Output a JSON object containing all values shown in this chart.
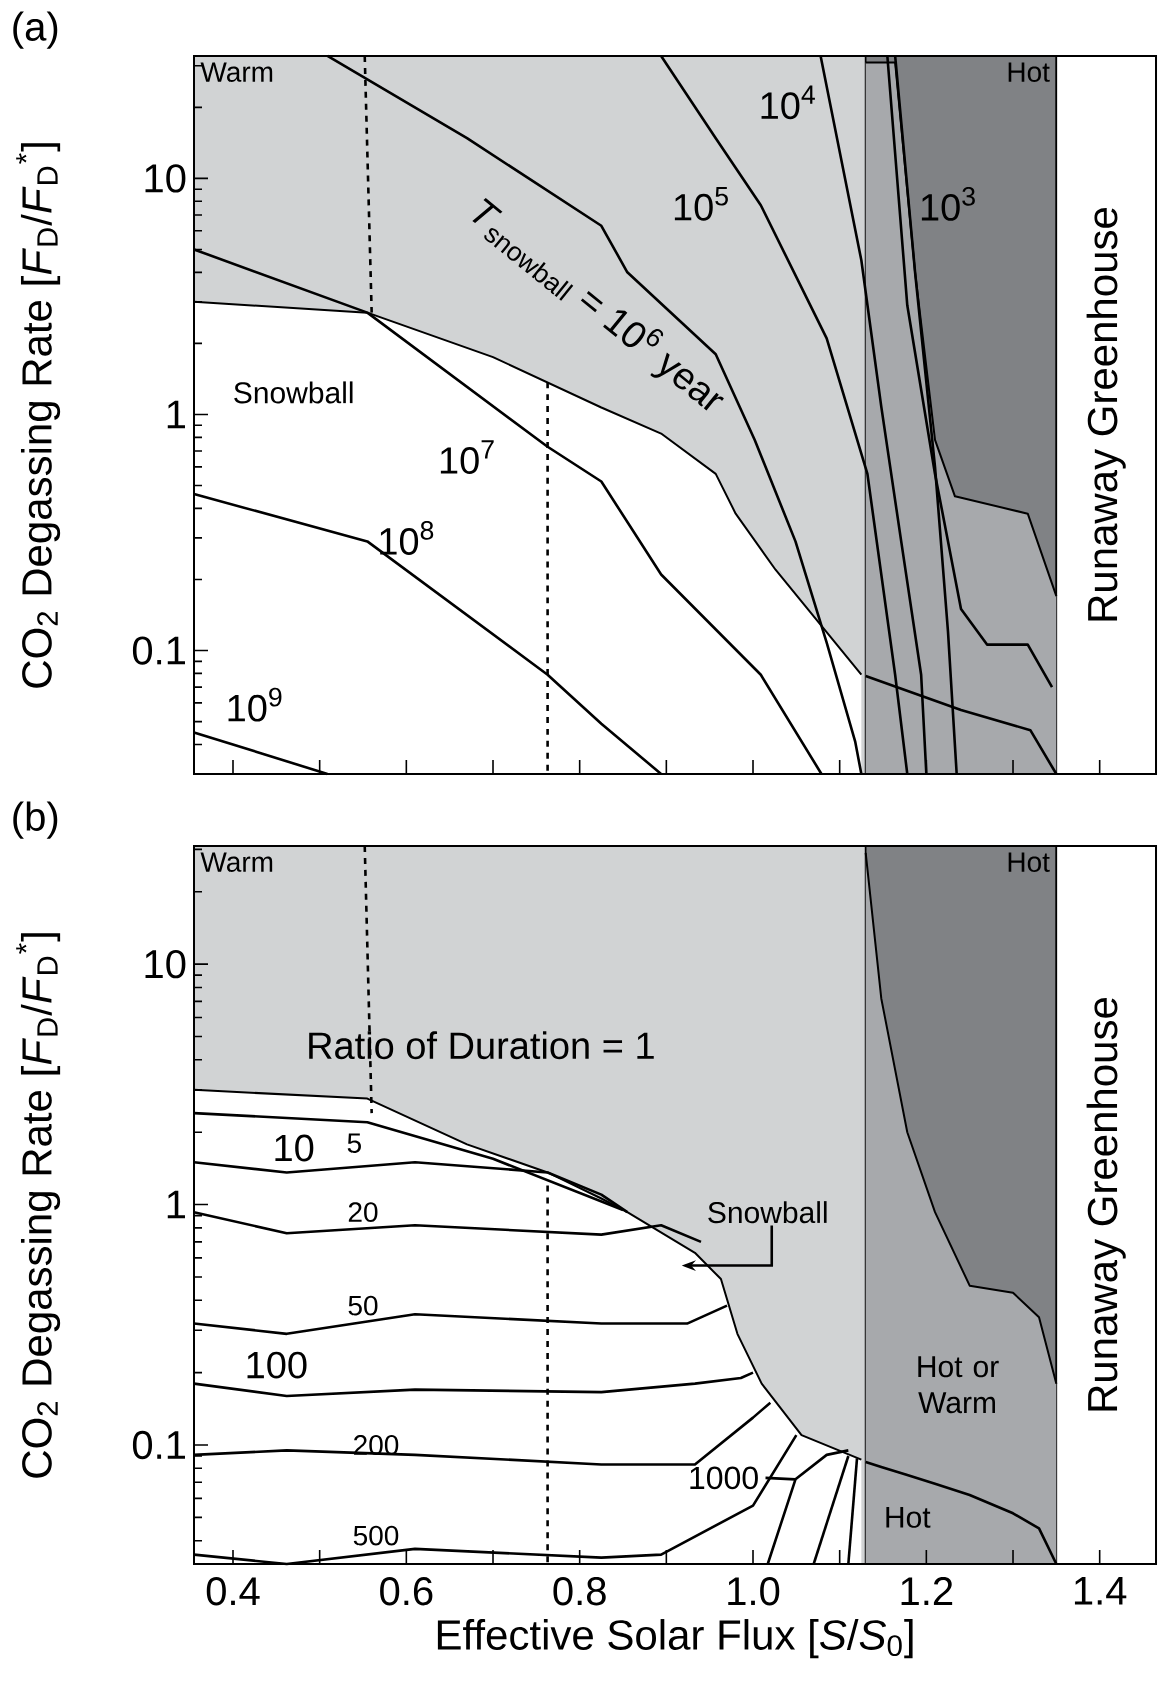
{
  "chart_data": [
    {
      "type": "line",
      "title": "(a)",
      "ylabel": "CO$_{2}$ Degassing Rate [*F*$_{D}$/*F*$_{D}$$^{*}$]",
      "log": "y",
      "tick_labels": "y",
      "xlim": [
        0.355,
        1.465
      ],
      "ylim": [
        0.03,
        33
      ],
      "xticks": [
        0.4,
        0.5,
        0.6,
        0.7,
        0.8,
        0.9,
        1.0,
        1.1,
        1.2,
        1.3,
        1.4
      ],
      "yticks": [
        0.1,
        1,
        10
      ],
      "bands": [
        {
          "axis": "x",
          "from": 0.355,
          "to": 1.13,
          "label": "Warm",
          "color": "#d1d3d4"
        },
        {
          "axis": "x",
          "from": 1.13,
          "to": 1.35,
          "label": "Hot",
          "color": "#808285"
        },
        {
          "axis": "x",
          "from": 1.35,
          "to": 1.465,
          "label": "Runaway Greenhouse",
          "color": "#ffffff"
        }
      ],
      "series": [
        {
          "type": "area",
          "name": "Snowball",
          "color": "#ffffff",
          "x": [
            0.355,
            0.555,
            0.7,
            0.825,
            0.894,
            0.957,
            0.98,
            1.026,
            1.063,
            1.125
          ],
          "values": [
            3.0,
            2.7,
            1.75,
            1.07,
            0.83,
            0.56,
            0.38,
            0.22,
            0.15,
            0.079
          ]
        },
        {
          "type": "area",
          "color": "#a7a9ac",
          "x": [
            1.13,
            1.164,
            1.187,
            1.21,
            1.233,
            1.317,
            1.35
          ],
          "values": [
            31,
            31,
            4.0,
            0.78,
            0.45,
            0.38,
            0.17
          ]
        },
        {
          "color": "#000000",
          "x": [
            1.13,
            1.24,
            1.32,
            1.35
          ],
          "values": [
            0.078,
            0.056,
            0.046,
            0.03
          ]
        },
        {
          "name": "10$^{3}$",
          "color": "#000000",
          "x": [
            1.164,
            1.187,
            1.21,
            1.225,
            1.235
          ],
          "values": [
            33,
            4.0,
            0.6,
            0.12,
            0.03
          ]
        },
        {
          "color": "#000000",
          "x": [
            1.155,
            1.178,
            1.21,
            1.24,
            1.27,
            1.317,
            1.345
          ],
          "values": [
            33,
            2.9,
            0.56,
            0.15,
            0.106,
            0.106,
            0.07
          ]
        },
        {
          "name": "10$^{4}$",
          "color": "#000000",
          "x": [
            1.078,
            1.125,
            1.148,
            1.171,
            1.194,
            1.2
          ],
          "values": [
            33,
            4.5,
            1.08,
            0.29,
            0.079,
            0.03
          ]
        },
        {
          "name": "10$^{5}$",
          "color": "#000000",
          "x": [
            0.894,
            0.957,
            1.009,
            1.085,
            1.132,
            1.164,
            1.178
          ],
          "values": [
            33,
            14.8,
            7.7,
            2.1,
            0.56,
            0.079,
            0.03
          ]
        },
        {
          "name": "*T*$_{snowball}$ = 10$^{6}$ year",
          "color": "#000000",
          "x": [
            0.509,
            0.67,
            0.825,
            0.855,
            0.957,
            1.002,
            1.049,
            1.085,
            1.118,
            1.125
          ],
          "values": [
            33,
            14.8,
            6.3,
            4.0,
            1.8,
            0.78,
            0.29,
            0.108,
            0.041,
            0.03
          ]
        },
        {
          "name": "10$^{7}$",
          "color": "#000000",
          "x": [
            0.355,
            0.555,
            0.763,
            0.825,
            0.894,
            1.009,
            1.079
          ],
          "values": [
            5.0,
            2.7,
            0.73,
            0.52,
            0.21,
            0.079,
            0.03
          ]
        },
        {
          "name": "10$^{8}$",
          "color": "#000000",
          "x": [
            0.355,
            0.555,
            0.763,
            0.825,
            0.894
          ],
          "values": [
            0.46,
            0.29,
            0.079,
            0.049,
            0.03
          ]
        },
        {
          "name": "10$^{9}$",
          "color": "#000000",
          "x": [
            0.355,
            0.509
          ],
          "values": [
            0.045,
            0.03
          ]
        },
        {
          "color": "#000000",
          "line_style": "dashed",
          "x": [
            0.552,
            0.56
          ],
          "values": [
            33,
            2.7
          ]
        },
        {
          "color": "#000000",
          "line_style": "dashed",
          "x": [
            0.763,
            0.763
          ],
          "values": [
            1.37,
            0.03
          ]
        }
      ]
    },
    {
      "type": "line",
      "title": "(b)",
      "xlabel": "Effective Solar Flux [*S*/*S*$_{0}$]",
      "ylabel": "CO$_{2}$ Degassing Rate [*F*$_{D}$/*F*$_{D}$$^{*}$]",
      "log": "y",
      "xlim": [
        0.355,
        1.465
      ],
      "ylim": [
        0.032,
        31
      ],
      "xticks": [
        0.4,
        {
          "value": 0.5,
          "label": null
        },
        0.6,
        {
          "value": 0.7,
          "label": null
        },
        0.8,
        {
          "value": 0.9,
          "label": null
        },
        {
          "value": 1.0,
          "label": "1.0"
        },
        {
          "value": 1.1,
          "label": null
        },
        1.2,
        {
          "value": 1.3,
          "label": null
        },
        1.4
      ],
      "yticks": [
        0.1,
        1,
        10
      ],
      "bands": [
        {
          "axis": "x",
          "from": 0.355,
          "to": 1.13,
          "label": "Warm",
          "color": "#d1d3d4"
        },
        {
          "axis": "x",
          "from": 1.13,
          "to": 1.35,
          "label": "Hot",
          "color": "#808285"
        },
        {
          "axis": "x",
          "from": 1.35,
          "to": 1.465,
          "label": "Runaway Greenhouse",
          "color": "#ffffff"
        }
      ],
      "series": [
        {
          "type": "area",
          "color": "#ffffff",
          "x": [
            0.355,
            0.555,
            0.67,
            0.763,
            0.825,
            0.855,
            0.933,
            0.963,
            0.982,
            1.01,
            1.056,
            1.125
          ],
          "values": [
            3.0,
            2.76,
            1.78,
            1.36,
            1.06,
            0.93,
            0.63,
            0.49,
            0.29,
            0.18,
            0.11,
            0.087
          ]
        },
        {
          "type": "area",
          "name": "Hot or Warm",
          "color": "#a7a9ac",
          "x": [
            1.13,
            1.148,
            1.178,
            1.21,
            1.25,
            1.3,
            1.33,
            1.35
          ],
          "values": [
            29,
            7.2,
            2.0,
            0.93,
            0.46,
            0.43,
            0.34,
            0.18
          ]
        },
        {
          "name": "Hot",
          "color": "#000000",
          "x": [
            1.13,
            1.148,
            1.178,
            1.21,
            1.25,
            1.3,
            1.33,
            1.35
          ],
          "values": [
            0.085,
            0.081,
            0.075,
            0.069,
            0.062,
            0.052,
            0.045,
            0.032
          ]
        },
        {
          "name": "5",
          "color": "#000000",
          "x": [
            0.355,
            0.555,
            0.7,
            0.85
          ],
          "values": [
            2.4,
            2.2,
            1.55,
            0.95
          ]
        },
        {
          "name": "10",
          "color": "#000000",
          "x": [
            0.355,
            0.462,
            0.61,
            0.763,
            0.825,
            0.855
          ],
          "values": [
            1.5,
            1.36,
            1.5,
            1.36,
            1.1,
            0.93
          ]
        },
        {
          "name": "20",
          "color": "#000000",
          "x": [
            0.355,
            0.462,
            0.61,
            0.825,
            0.894,
            0.94
          ],
          "values": [
            0.93,
            0.76,
            0.82,
            0.75,
            0.82,
            0.7
          ]
        },
        {
          "name": "50",
          "color": "#000000",
          "x": [
            0.355,
            0.462,
            0.61,
            0.825,
            0.924,
            0.97
          ],
          "values": [
            0.32,
            0.29,
            0.35,
            0.32,
            0.32,
            0.38
          ]
        },
        {
          "name": "100",
          "color": "#000000",
          "x": [
            0.355,
            0.462,
            0.61,
            0.825,
            0.933,
            0.986,
            1.0
          ],
          "values": [
            0.18,
            0.16,
            0.17,
            0.166,
            0.18,
            0.19,
            0.2
          ]
        },
        {
          "name": "200",
          "color": "#000000",
          "x": [
            0.355,
            0.462,
            0.61,
            0.825,
            0.933,
            1.0,
            1.02
          ],
          "values": [
            0.091,
            0.095,
            0.091,
            0.083,
            0.083,
            0.13,
            0.15
          ]
        },
        {
          "name": "500",
          "color": "#000000",
          "x": [
            0.355,
            0.462,
            0.61,
            0.825,
            0.894,
            1.0,
            1.05
          ],
          "values": [
            0.035,
            0.032,
            0.037,
            0.034,
            0.035,
            0.056,
            0.11
          ]
        },
        {
          "name": "1000",
          "color": "#000000",
          "x": [
            1.017,
            1.049,
            1.085,
            1.11
          ],
          "values": [
            0.032,
            0.072,
            0.091,
            0.095
          ]
        },
        {
          "color": "#000000",
          "x": [
            1.07,
            1.11
          ],
          "values": [
            0.032,
            0.09
          ]
        },
        {
          "color": "#000000",
          "x": [
            1.11,
            1.12
          ],
          "values": [
            0.032,
            0.088
          ]
        },
        {
          "color": "#000000",
          "line_style": "dashed",
          "x": [
            0.552,
            0.56
          ],
          "values": [
            31,
            2.4
          ]
        },
        {
          "color": "#000000",
          "line_style": "dashed",
          "x": [
            0.763,
            0.763
          ],
          "values": [
            1.2,
            0.032
          ]
        }
      ],
      "annotations": [
        "Ratio of Duration = 1",
        "Snowball"
      ]
    }
  ]
}
